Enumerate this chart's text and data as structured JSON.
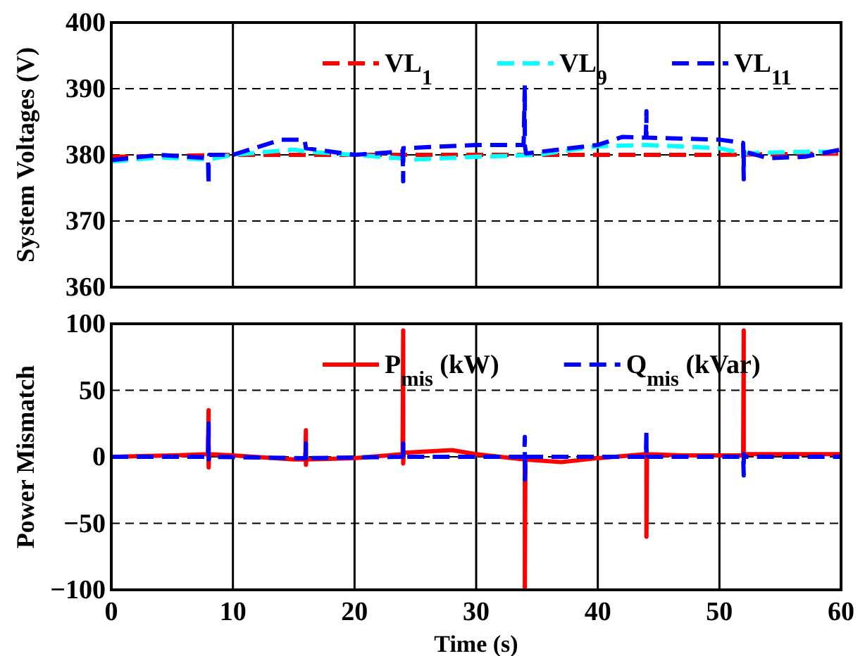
{
  "chart_data": [
    {
      "type": "line",
      "ylabel": "System Voltages (V)",
      "xlim": [
        0,
        60
      ],
      "xticks": [
        0,
        10,
        20,
        30,
        40,
        50,
        60
      ],
      "ylim": [
        360,
        400
      ],
      "yticks": [
        360,
        370,
        380,
        390,
        400
      ],
      "grid": true,
      "legend": "top",
      "tick_labels": "y",
      "series": [
        {
          "name": "VL$_{1}$",
          "color": "#ff0000",
          "line_style": "dashed",
          "x": [
            0,
            10,
            20,
            30,
            40,
            50,
            60
          ],
          "values": [
            379.7,
            380,
            380,
            380,
            380,
            380,
            380.2
          ]
        },
        {
          "name": "VL$_{9}$",
          "color": "#00ffff",
          "line_style": "dashed",
          "x": [
            0,
            4,
            8,
            10,
            15,
            16,
            20,
            25,
            30,
            35,
            40,
            44,
            50,
            52,
            55,
            60
          ],
          "values": [
            379,
            379.6,
            379.3,
            380,
            380.8,
            380.5,
            380,
            379.3,
            379.7,
            380,
            381.3,
            381.5,
            381,
            380.2,
            380.4,
            380.5
          ]
        },
        {
          "name": "VL$_{11}$",
          "color": "#0000ff",
          "line_style": "dashed",
          "x": [
            0,
            4,
            7.95,
            8,
            8,
            8.05,
            10,
            14,
            15.9,
            16,
            20,
            23.95,
            24,
            24,
            24.05,
            30,
            33.9,
            34,
            34,
            34.1,
            40,
            42,
            43.95,
            44,
            44,
            44.05,
            50,
            51.95,
            52,
            52,
            52.05,
            54,
            57,
            60
          ],
          "values": [
            379.2,
            380,
            379.5,
            375.5,
            379.5,
            380,
            380,
            382.3,
            382.3,
            381,
            380,
            380.5,
            376,
            381,
            381,
            381.5,
            381.5,
            390.5,
            381.5,
            380.2,
            381.5,
            382.7,
            382.6,
            386.6,
            382.6,
            382.6,
            382.3,
            381.8,
            376.3,
            381,
            380.5,
            379.5,
            379.7,
            380.8
          ]
        }
      ]
    },
    {
      "type": "line",
      "ylabel": "Power Mismatch",
      "xlabel": "Time (s)",
      "xlim": [
        0,
        60
      ],
      "xticks": [
        0,
        10,
        20,
        30,
        40,
        50,
        60
      ],
      "ylim": [
        -100,
        100
      ],
      "yticks": [
        -100,
        -50,
        0,
        50,
        100
      ],
      "grid": true,
      "legend": "top",
      "series": [
        {
          "name": "P$_{mis}$ (kW)",
          "color": "#ff0000",
          "line_style": "solid",
          "x": [
            0,
            5,
            7.95,
            8,
            8,
            8.05,
            10,
            15,
            15.95,
            16,
            16,
            16.05,
            20,
            23.95,
            24,
            24,
            24.05,
            28,
            30,
            33.95,
            34,
            34,
            34.05,
            37,
            40,
            43.95,
            44,
            44,
            44.05,
            47,
            51.95,
            52,
            52,
            52.05,
            60
          ],
          "values": [
            0,
            1,
            2,
            35,
            -8,
            2,
            1,
            -2,
            -2,
            20,
            -6,
            -2,
            -1,
            2,
            95,
            -5,
            3,
            5,
            2,
            -2,
            0,
            -100,
            -2,
            -4,
            -1,
            2,
            5,
            -60,
            2,
            1,
            1,
            95,
            0,
            2,
            2
          ]
        },
        {
          "name": "Q$_{mis}$ (kVar)",
          "color": "#0000ff",
          "line_style": "dashed",
          "x": [
            0,
            7.95,
            8,
            8,
            8.05,
            15.95,
            16,
            16,
            16.05,
            23.95,
            24,
            24,
            24.05,
            33.95,
            34,
            34,
            34.05,
            43.95,
            44,
            44,
            44.05,
            51.95,
            52,
            52,
            52.05,
            60
          ],
          "values": [
            0,
            0,
            25,
            -2,
            0,
            -1,
            10,
            -3,
            -1,
            0,
            10,
            -2,
            0,
            0,
            15,
            -17,
            0,
            0,
            20,
            -2,
            0,
            0,
            -14,
            2,
            0,
            0
          ]
        }
      ]
    }
  ]
}
